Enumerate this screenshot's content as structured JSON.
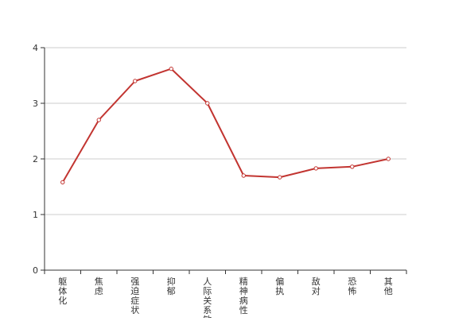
{
  "chart_data": {
    "type": "line",
    "categories": [
      "躯体化",
      "焦虑",
      "强迫症状",
      "抑郁",
      "人际关系敏感",
      "精神病性",
      "偏执",
      "敌对",
      "恐怖",
      "其他"
    ],
    "series": [
      {
        "values": [
          1.58,
          2.7,
          3.4,
          3.62,
          3.0,
          1.7,
          1.67,
          1.83,
          1.86,
          2.0
        ]
      }
    ],
    "ylim": [
      0,
      4
    ],
    "yticks": [
      0,
      1,
      2,
      3,
      4
    ],
    "grid": true,
    "legend": "none",
    "colors": {
      "line": "#c23531",
      "marker_fill": "#ffffff",
      "grid": "#cccccc",
      "axis": "#333333"
    }
  }
}
